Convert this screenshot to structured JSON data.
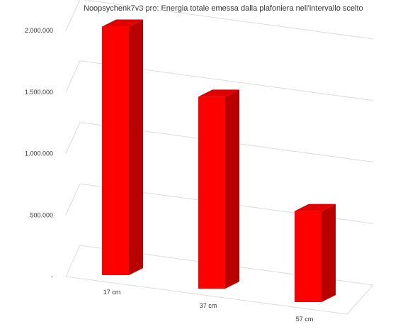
{
  "chart_data": {
    "type": "bar",
    "title": "Noopsychenk7v3 pro: Energia totale emessa dalla plafoniera nell'intervallo scelto",
    "categories": [
      "17 cm",
      "37 cm",
      "57 cm"
    ],
    "series": [
      {
        "values": [
          2020000,
          1560000,
          740000
        ]
      }
    ],
    "y_tick_labels": [
      "-",
      "500.000",
      "1.000.000",
      "1.500.000",
      "2.000.000"
    ],
    "y_ticks": [
      0,
      500000,
      1000000,
      1500000,
      2000000
    ],
    "ylim": [
      0,
      2000000
    ],
    "grid": true,
    "legend": "none",
    "three_d": true,
    "colors": {
      "bar_front": "#ff0000",
      "bar_side": "#b80000",
      "bar_top": "#e00000",
      "grid": "#dcdcdc",
      "text": "#333333"
    }
  }
}
